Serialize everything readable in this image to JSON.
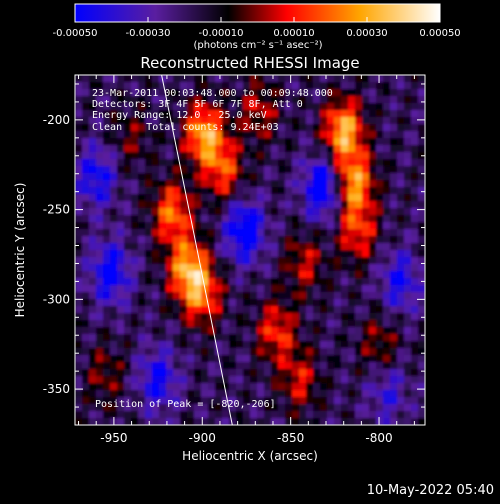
{
  "chart_data": {
    "type": "heatmap",
    "title": "Reconstructed RHESSI Image",
    "xlabel": "Heliocentric X (arcsec)",
    "ylabel": "Heliocentric Y (arcsec)",
    "xlim": [
      -972,
      -774
    ],
    "ylim": [
      -370,
      -175
    ],
    "x_ticks": [
      -950,
      -900,
      -850,
      -800
    ],
    "y_ticks": [
      -200,
      -250,
      -300,
      -350
    ],
    "x_tick_labels": [
      "-950",
      "-900",
      "-850",
      "-800"
    ],
    "y_tick_labels": [
      "-200",
      "-250",
      "-300",
      "-350"
    ],
    "colorbar": {
      "min": -0.0005,
      "max": 0.0005,
      "ticks": [
        -0.0005,
        -0.0003,
        -0.0001,
        0.0001,
        0.0003,
        0.0005
      ],
      "tick_labels": [
        "-0.00050",
        "-0.00030",
        "-0.00010",
        "0.00010",
        "0.00030",
        "0.00050"
      ],
      "units_label": "(photons cm⁻² s⁻¹ asec⁻²)",
      "colormap": [
        "#0000ff",
        "#5a1ea0",
        "#000000",
        "#ff0000",
        "#ffa500",
        "#ffffff"
      ]
    },
    "annotations": [
      "23-Mar-2011 00:03:48.000 to 00:09:48.000",
      "Detectors: 3F 4F 5F 6F 7F 8F, Att 0",
      "Energy Range: 12.0 - 25.0 keV",
      "Clean    Total counts: 9.24E+03"
    ],
    "peak_label": "Position of Peak = [-820,-206]",
    "peak": {
      "x": -820,
      "y": -206
    },
    "sources": [
      {
        "x": -899,
        "y": -208,
        "intensity": 0.00048
      },
      {
        "x": -888,
        "y": -228,
        "intensity": 0.00032
      },
      {
        "x": -917,
        "y": -252,
        "intensity": 0.00038
      },
      {
        "x": -908,
        "y": -283,
        "intensity": 0.00046
      },
      {
        "x": -900,
        "y": -298,
        "intensity": 0.00034
      },
      {
        "x": -820,
        "y": -206,
        "intensity": 0.0005
      },
      {
        "x": -814,
        "y": -235,
        "intensity": 0.00044
      },
      {
        "x": -812,
        "y": -262,
        "intensity": 0.0003
      },
      {
        "x": -858,
        "y": -318,
        "intensity": 0.0003
      },
      {
        "x": -842,
        "y": -280,
        "intensity": 0.00022
      },
      {
        "x": -868,
        "y": -195,
        "intensity": 0.00022
      },
      {
        "x": -845,
        "y": -345,
        "intensity": 0.00024
      },
      {
        "x": -800,
        "y": -325,
        "intensity": 0.00018
      },
      {
        "x": -955,
        "y": -342,
        "intensity": 0.00016
      },
      {
        "x": -940,
        "y": -210,
        "intensity": 0.00014
      },
      {
        "x": -952,
        "y": -285,
        "intensity": -0.00035
      },
      {
        "x": -876,
        "y": -262,
        "intensity": -0.0004
      },
      {
        "x": -832,
        "y": -238,
        "intensity": -0.0004
      },
      {
        "x": -788,
        "y": -290,
        "intensity": -0.00028
      },
      {
        "x": -925,
        "y": -345,
        "intensity": -0.0003
      },
      {
        "x": -960,
        "y": -232,
        "intensity": -0.0003
      },
      {
        "x": -795,
        "y": -352,
        "intensity": -0.0002
      }
    ],
    "limb": {
      "points": [
        [
          -923,
          -175
        ],
        [
          -905,
          -262
        ],
        [
          -883,
          -370
        ]
      ]
    }
  },
  "footer_date": "10-May-2022 05:40"
}
